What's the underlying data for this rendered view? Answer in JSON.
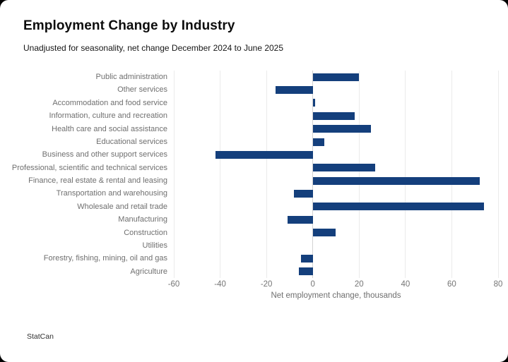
{
  "card": {
    "title": "Employment Change by Industry",
    "subtitle": "Unadjusted for seasonality, net change December 2024 to June 2025",
    "footer": "StatCan"
  },
  "chart_data": {
    "type": "bar",
    "orientation": "horizontal",
    "title": "Employment Change by Industry",
    "subtitle": "Unadjusted for seasonality, net change December 2024 to June 2025",
    "xlabel": "Net employment change, thousands",
    "ylabel": "",
    "xlim": [
      -60,
      80
    ],
    "x_ticks": [
      -60,
      -40,
      -20,
      0,
      20,
      40,
      60,
      80
    ],
    "grid": "vertical",
    "legend": "none",
    "categories": [
      "Public administration",
      "Other services",
      "Accommodation and food service",
      "Information, culture and recreation",
      "Health care and social assistance",
      "Educational services",
      "Business and other support services",
      "Professional, scientific and technical services",
      "Finance, real estate & rental and leasing",
      "Transportation and warehousing",
      "Wholesale and retail trade",
      "Manufacturing",
      "Construction",
      "Utilities",
      "Forestry, fishing, mining, oil and gas",
      "Agriculture"
    ],
    "values": [
      20,
      -16,
      1,
      18,
      25,
      5,
      -42,
      27,
      72,
      -8,
      74,
      -11,
      10,
      0,
      -5,
      -6
    ],
    "bar_color": "#143F7C",
    "grid_color": "#ebebeb",
    "zero_line_color": "#d2d2d2",
    "label_color": "#6f6f6f",
    "tick_color": "#757575"
  }
}
